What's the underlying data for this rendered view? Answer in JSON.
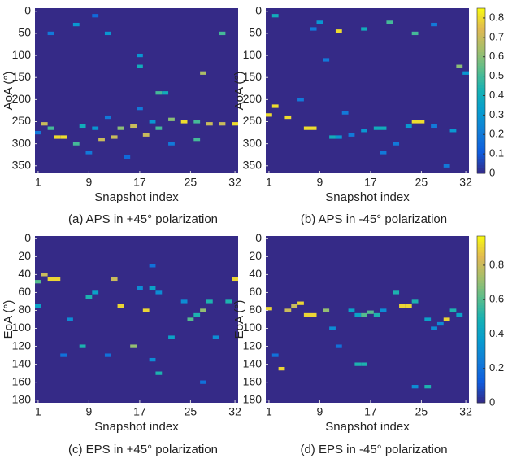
{
  "chart_data": [
    {
      "type": "heatmap",
      "caption": "(a) APS in +45° polarization",
      "xlabel": "Snapshot index",
      "ylabel": "AoA (°)",
      "xlim": [
        0.5,
        32.5
      ],
      "xticks": [
        1,
        9,
        17,
        25,
        32
      ],
      "ylim": [
        -7,
        367
      ],
      "yticks": [
        0,
        50,
        100,
        150,
        200,
        250,
        300,
        350
      ],
      "clim": [
        0,
        0.85
      ],
      "colorbar": false,
      "x": [
        3,
        7,
        10,
        12,
        17,
        17,
        20,
        21,
        17,
        30,
        27,
        2,
        3,
        4,
        5,
        7,
        8,
        10,
        11,
        13,
        14,
        16,
        18,
        20,
        22,
        24,
        26,
        26,
        28,
        30,
        32,
        12,
        19,
        1,
        9,
        22,
        15
      ],
      "y": [
        50,
        30,
        10,
        50,
        100,
        125,
        185,
        185,
        220,
        50,
        140,
        255,
        265,
        285,
        285,
        300,
        260,
        265,
        290,
        285,
        265,
        260,
        280,
        265,
        245,
        250,
        290,
        250,
        255,
        255,
        255,
        240,
        250,
        275,
        320,
        300,
        330
      ],
      "values": [
        0.2,
        0.3,
        0.15,
        0.3,
        0.3,
        0.4,
        0.5,
        0.4,
        0.2,
        0.5,
        0.65,
        0.7,
        0.5,
        0.8,
        0.8,
        0.5,
        0.4,
        0.3,
        0.7,
        0.7,
        0.6,
        0.7,
        0.7,
        0.5,
        0.6,
        0.8,
        0.5,
        0.5,
        0.7,
        0.7,
        0.8,
        0.2,
        0.3,
        0.2,
        0.2,
        0.2,
        0.15
      ]
    },
    {
      "type": "heatmap",
      "caption": "(b) APS in -45° polarization",
      "xlabel": "Snapshot index",
      "ylabel": "AoA (°)",
      "xlim": [
        0.5,
        32.5
      ],
      "xticks": [
        1,
        9,
        17,
        25,
        32
      ],
      "ylim": [
        -7,
        367
      ],
      "yticks": [
        0,
        50,
        100,
        150,
        200,
        250,
        300,
        350
      ],
      "clim": [
        0,
        0.85
      ],
      "colorbar": true,
      "cticks": [
        0,
        0.1,
        0.2,
        0.3,
        0.4,
        0.5,
        0.6,
        0.7,
        0.8
      ],
      "x": [
        2,
        8,
        9,
        12,
        16,
        20,
        24,
        31,
        32,
        2,
        1,
        4,
        7,
        8,
        11,
        12,
        14,
        16,
        18,
        19,
        23,
        24,
        25,
        27,
        30,
        6,
        13,
        21,
        19,
        10,
        27,
        29
      ],
      "y": [
        10,
        40,
        25,
        45,
        40,
        25,
        50,
        125,
        140,
        215,
        235,
        240,
        265,
        265,
        285,
        285,
        280,
        270,
        265,
        265,
        260,
        250,
        250,
        260,
        270,
        200,
        230,
        300,
        320,
        110,
        30,
        350
      ],
      "values": [
        0.4,
        0.2,
        0.3,
        0.8,
        0.4,
        0.5,
        0.5,
        0.6,
        0.3,
        0.8,
        0.8,
        0.8,
        0.8,
        0.8,
        0.4,
        0.3,
        0.2,
        0.3,
        0.4,
        0.4,
        0.3,
        0.8,
        0.8,
        0.2,
        0.3,
        0.2,
        0.2,
        0.2,
        0.2,
        0.2,
        0.2,
        0.2
      ]
    },
    {
      "type": "heatmap",
      "caption": "(c) EPS in +45° polarization",
      "xlabel": "Snapshot index",
      "ylabel": "EoA (°)",
      "xlim": [
        0.5,
        32.5
      ],
      "xticks": [
        1,
        9,
        17,
        25,
        32
      ],
      "ylim": [
        -3,
        183
      ],
      "yticks": [
        0,
        20,
        40,
        60,
        80,
        100,
        120,
        140,
        160,
        180
      ],
      "clim": [
        0,
        0.97
      ],
      "colorbar": false,
      "x": [
        2,
        3,
        4,
        1,
        1,
        6,
        9,
        10,
        8,
        13,
        14,
        16,
        17,
        18,
        19,
        20,
        19,
        22,
        25,
        26,
        27,
        28,
        29,
        31,
        32,
        20,
        19,
        12,
        5,
        24,
        27
      ],
      "y": [
        40,
        45,
        45,
        48,
        75,
        90,
        65,
        60,
        120,
        45,
        75,
        120,
        55,
        80,
        55,
        60,
        30,
        110,
        90,
        85,
        80,
        70,
        110,
        70,
        45,
        150,
        135,
        130,
        130,
        70,
        160
      ],
      "values": [
        0.8,
        0.9,
        0.9,
        0.6,
        0.4,
        0.3,
        0.5,
        0.4,
        0.5,
        0.8,
        0.9,
        0.7,
        0.3,
        0.9,
        0.4,
        0.3,
        0.2,
        0.4,
        0.6,
        0.5,
        0.7,
        0.5,
        0.3,
        0.5,
        0.9,
        0.5,
        0.3,
        0.2,
        0.2,
        0.3,
        0.2
      ]
    },
    {
      "type": "heatmap",
      "caption": "(d) EPS in -45° polarization",
      "xlabel": "Snapshot index",
      "ylabel": "EoA (°)",
      "xlim": [
        0.5,
        32.5
      ],
      "xticks": [
        1,
        9,
        17,
        25,
        32
      ],
      "ylim": [
        -3,
        183
      ],
      "yticks": [
        0,
        20,
        40,
        60,
        80,
        100,
        120,
        140,
        160,
        180
      ],
      "clim": [
        0,
        0.97
      ],
      "colorbar": true,
      "cticks": [
        0,
        0.2,
        0.4,
        0.6,
        0.8
      ],
      "x": [
        1,
        3,
        4,
        5,
        6,
        7,
        8,
        10,
        11,
        14,
        15,
        16,
        17,
        18,
        15,
        16,
        19,
        21,
        22,
        23,
        24,
        26,
        27,
        28,
        29,
        30,
        31,
        24,
        26,
        2,
        12
      ],
      "y": [
        78,
        145,
        80,
        75,
        72,
        85,
        85,
        80,
        100,
        80,
        85,
        85,
        82,
        85,
        140,
        140,
        80,
        60,
        75,
        75,
        70,
        90,
        100,
        95,
        90,
        80,
        85,
        165,
        165,
        130,
        120
      ],
      "values": [
        0.9,
        0.9,
        0.8,
        0.8,
        0.9,
        0.9,
        0.9,
        0.7,
        0.3,
        0.4,
        0.4,
        0.6,
        0.6,
        0.5,
        0.5,
        0.5,
        0.3,
        0.5,
        0.9,
        0.9,
        0.5,
        0.4,
        0.3,
        0.3,
        0.9,
        0.5,
        0.4,
        0.3,
        0.5,
        0.2,
        0.2
      ]
    }
  ]
}
